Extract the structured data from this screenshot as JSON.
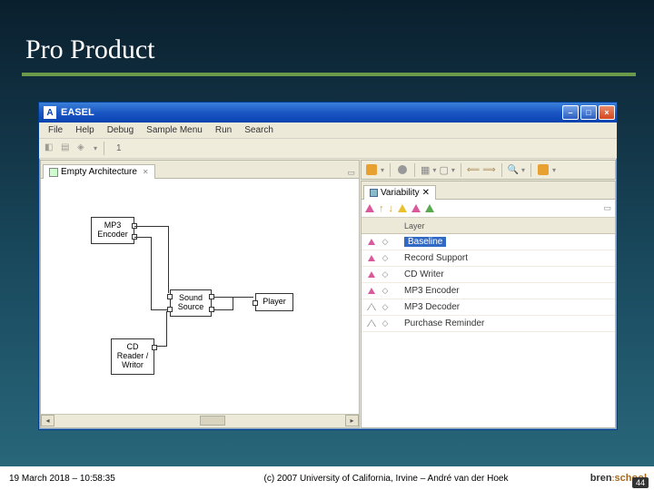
{
  "slide": {
    "title": "Pro Product",
    "timestamp": "19 March 2018 – 10:58:35",
    "copyright": "(c) 2007 University of California, Irvine – André van der Hoek",
    "page_number": "44",
    "logo_text_1": "bren",
    "logo_text_2": "school"
  },
  "window": {
    "app_icon_letter": "A",
    "title": "EASEL",
    "menu": [
      "File",
      "Help",
      "Debug",
      "Sample Menu",
      "Run",
      "Search"
    ],
    "zoom_value": "1"
  },
  "left_panel": {
    "tab_label": "Empty Architecture",
    "components": {
      "mp3_encoder": "MP3\nEncoder",
      "sound_source": "Sound\nSource",
      "player": "Player",
      "cd_rw": "CD\nReader /\nWritor"
    }
  },
  "right_panel": {
    "tab_label": "Variability",
    "col1_header": "",
    "col3_header": "Layer",
    "layers": [
      {
        "filled": true,
        "label": "Baseline",
        "selected": true
      },
      {
        "filled": true,
        "label": "Record Support",
        "selected": false
      },
      {
        "filled": true,
        "label": "CD Writer",
        "selected": false
      },
      {
        "filled": true,
        "label": "MP3 Encoder",
        "selected": false
      },
      {
        "filled": false,
        "label": "MP3 Decoder",
        "selected": false
      },
      {
        "filled": false,
        "label": "Purchase Reminder",
        "selected": false
      }
    ]
  },
  "colors": {
    "slide_bg_top": "#0a1f2e",
    "slide_bg_mid": "#1a4a5e",
    "slide_bg_bot": "#2a6a7e",
    "title_rule": "#6a9a4a",
    "titlebar_top": "#3a80d8",
    "titlebar_bot": "#0842b0",
    "ui_bg": "#ece9d8",
    "selection": "#316ac5",
    "tri_pink": "#d85a9a",
    "tri_yellow": "#e8c030",
    "tri_green": "#5aa850"
  }
}
